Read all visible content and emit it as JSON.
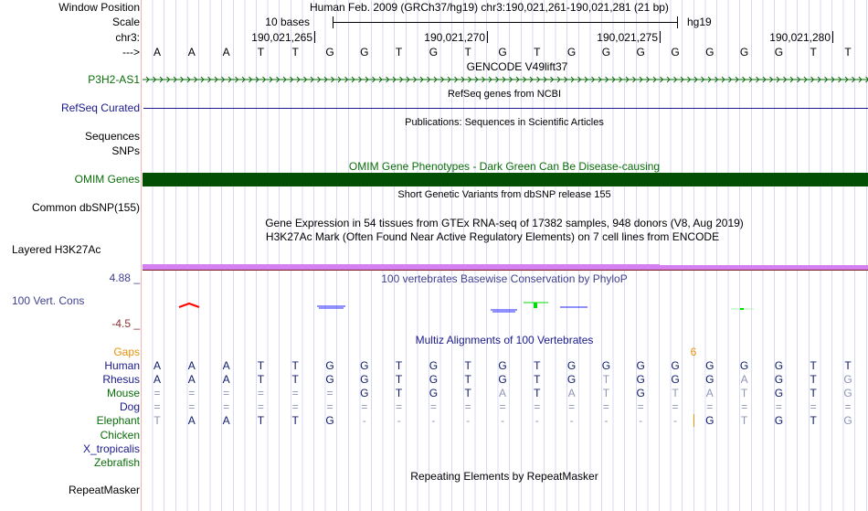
{
  "header": {
    "window_position_label": "Window Position",
    "scale_label": "Scale",
    "chrom_label": "chr3:",
    "strand_label": "--->",
    "title": "Human Feb. 2009 (GRCh37/hg19)   chr3:190,021,261-190,021,281 (21 bp)",
    "scale_text": "10 bases",
    "assembly": "hg19",
    "positions": [
      "190,021,265",
      "190,021,270",
      "190,021,275",
      "190,021,280"
    ],
    "sequence": "AAATTGGTGTGTGGGGGGGTT"
  },
  "tracks": {
    "gencode": {
      "title": "GENCODE V49lift37",
      "label": "P3H2-AS1"
    },
    "refseq": {
      "title": "RefSeq genes from NCBI",
      "label": "RefSeq Curated"
    },
    "pubs": {
      "title": "Publications: Sequences in Scientific Articles",
      "label1": "Sequences",
      "label2": "SNPs"
    },
    "omim": {
      "title": "OMIM Gene Phenotypes - Dark Green Can Be Disease-causing",
      "label": "OMIM Genes"
    },
    "dbsnp": {
      "title": "Short Genetic Variants from dbSNP release 155",
      "label": "Common dbSNP(155)"
    },
    "gtex": {
      "title": "Gene Expression in 54 tissues from GTEx RNA-seq of 17382 samples, 948 donors (V8, Aug 2019)"
    },
    "h3k27ac": {
      "title": "H3K27Ac Mark (Often Found Near Active Regulatory Elements) on 7 cell lines from ENCODE",
      "label": "Layered H3K27Ac"
    },
    "cons": {
      "title": "100 vertebrates Basewise Conservation by PhyloP",
      "label": "100 Vert. Cons",
      "max": "4.88 _",
      "min": "-4.5 _"
    },
    "multiz": {
      "title": "Multiz Alignments of 100 Vertebrates",
      "gaps_label": "Gaps",
      "gap_count": "6"
    },
    "repeat": {
      "title": "Repeating Elements by RepeatMasker",
      "label": "RepeatMasker"
    }
  },
  "alignment": [
    {
      "species": "Human",
      "color": "navy",
      "seq": "AAATTGGTGTGTGGGGGGGTT",
      "dim": "000000000000000000000"
    },
    {
      "species": "Rhesus",
      "color": "navy",
      "seq": "AAATTGGTGTGTGTGGGAGTG",
      "dim": "000000000000010001001"
    },
    {
      "species": "Mouse",
      "color": "green",
      "seq": "======GTGTATATGTATGTG",
      "dim": "111111000010110111001"
    },
    {
      "species": "Dog",
      "color": "navy",
      "seq": "=====================",
      "dim": "111111111111111111111"
    },
    {
      "species": "Elephant",
      "color": "green",
      "seq": "TAATTG----------GTGTG",
      "dim": "100000111111111101001"
    },
    {
      "species": "Chicken",
      "color": "green",
      "seq": "",
      "dim": ""
    },
    {
      "species": "X_tropicalis",
      "color": "navy",
      "seq": "",
      "dim": ""
    },
    {
      "species": "Zebrafish",
      "color": "green",
      "seq": "",
      "dim": ""
    }
  ],
  "colors": {
    "omim": "#034f03",
    "layered": "#d580f0",
    "gencode": "#0a6e0a",
    "refseq": "#1a1a8c"
  }
}
